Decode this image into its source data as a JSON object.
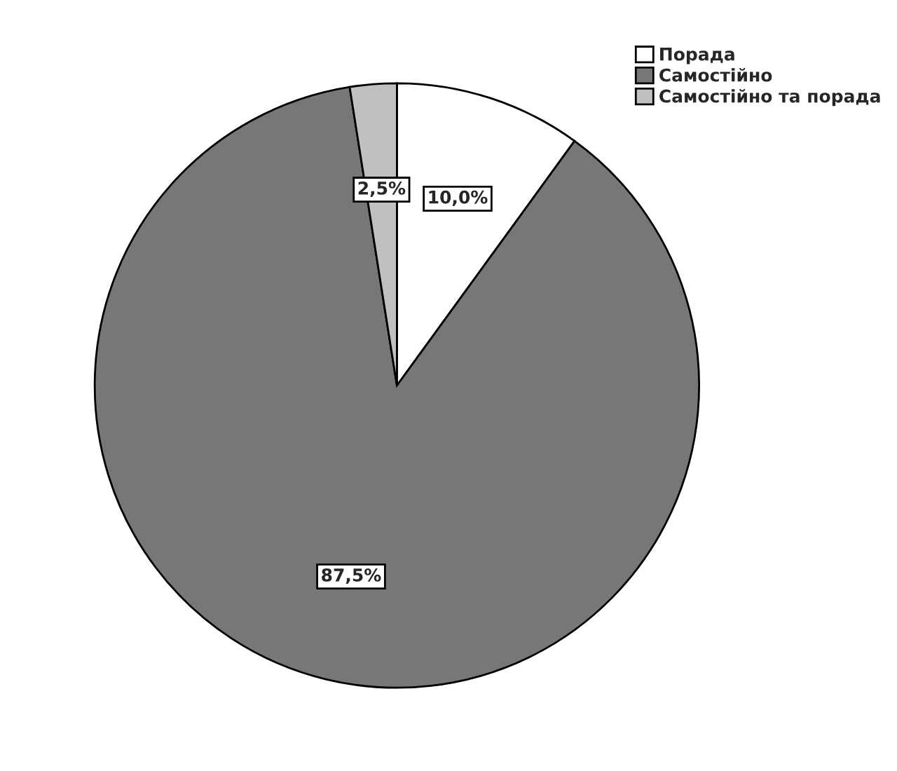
{
  "chart_data": {
    "type": "pie",
    "categories": [
      "Порада",
      "Самостійно",
      "Самостійно та порада"
    ],
    "values": [
      10.0,
      87.5,
      2.5
    ],
    "value_labels": [
      "10,0%",
      "87,5%",
      "2,5%"
    ],
    "colors": [
      "#ffffff",
      "#777777",
      "#c0c0c0"
    ],
    "legend": "top right"
  }
}
